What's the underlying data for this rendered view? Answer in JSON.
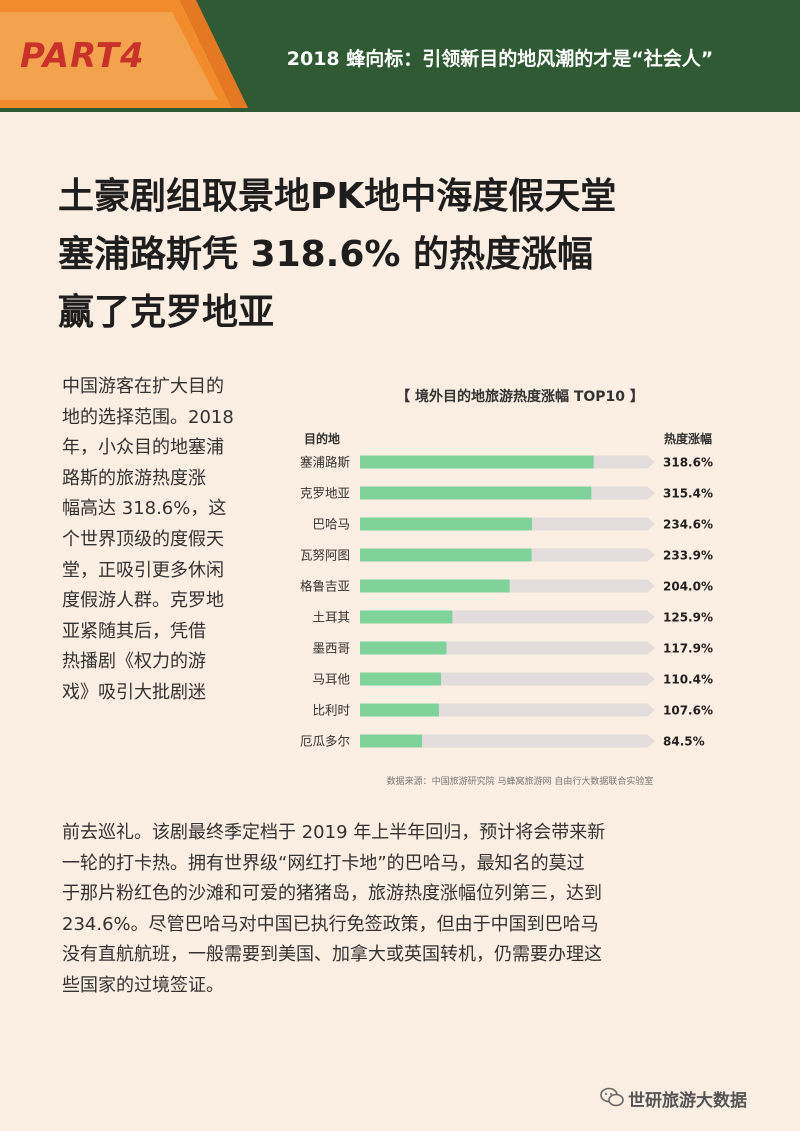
{
  "banner": {
    "part": "PART4",
    "title": "2018 蜂向标：引领新目的地风潮的才是“社会人”"
  },
  "colors": {
    "banner_green": "#2f5a33",
    "banner_orange": "#f28b2c",
    "part_red": "#c8322a",
    "bar_fill": "#7fd39a",
    "bar_track": "#e2dcdc",
    "background": "#fbeee2"
  },
  "headline": {
    "line1": "土豪剧组取景地PK地中海度假天堂",
    "line2": "塞浦路斯凭 318.6% 的热度涨幅",
    "line3": "赢了克罗地亚"
  },
  "body": {
    "narrow_lines": [
      "中国游客在扩大目的",
      "地的选择范围。2018",
      "年，小众目的地塞浦",
      "路斯的旅游热度涨",
      "幅高达 318.6%，这",
      "个世界顶级的度假天",
      "堂，正吸引更多休闲",
      "度假游人群。克罗地",
      "亚紧随其后，凭借",
      "热播剧《权力的游",
      "戏》吸引大批剧迷"
    ],
    "full_lines": [
      "前去巡礼。该剧最终季定档于 2019 年上半年回归，预计将会带来新",
      "一轮的打卡热。拥有世界级“网红打卡地”的巴哈马，最知名的莫过",
      "于那片粉红色的沙滩和可爱的猪猪岛，旅游热度涨幅位列第三，达到",
      "234.6%。尽管巴哈马对中国已执行免签政策，但由于中国到巴哈马",
      "没有直航航班，一般需要到美国、加拿大或英国转机，仍需要办理这",
      "些国家的过境签证。"
    ]
  },
  "chart_data": {
    "type": "bar",
    "orientation": "horizontal",
    "title": "【 境外目的地旅游热度涨幅 TOP10 】",
    "column_left": "目的地",
    "column_right": "热度涨幅",
    "categories": [
      "塞浦路斯",
      "克罗地亚",
      "巴哈马",
      "瓦努阿图",
      "格鲁吉亚",
      "土耳其",
      "墨西哥",
      "马耳他",
      "比利时",
      "厄瓜多尔"
    ],
    "values": [
      318.6,
      315.4,
      234.6,
      233.9,
      204.0,
      125.9,
      117.9,
      110.4,
      107.6,
      84.5
    ],
    "value_labels": [
      "318.6%",
      "315.4%",
      "234.6%",
      "233.9%",
      "204.0%",
      "125.9%",
      "117.9%",
      "110.4%",
      "107.6%",
      "84.5%"
    ],
    "xlim": [
      0,
      400
    ],
    "grid": false,
    "source": "数据来源：中国旅游研究院 马蜂窝旅游网 自由行大数据联合实验室"
  },
  "footer": {
    "brand": "世研旅游大数据",
    "icon": "wechat-icon"
  }
}
